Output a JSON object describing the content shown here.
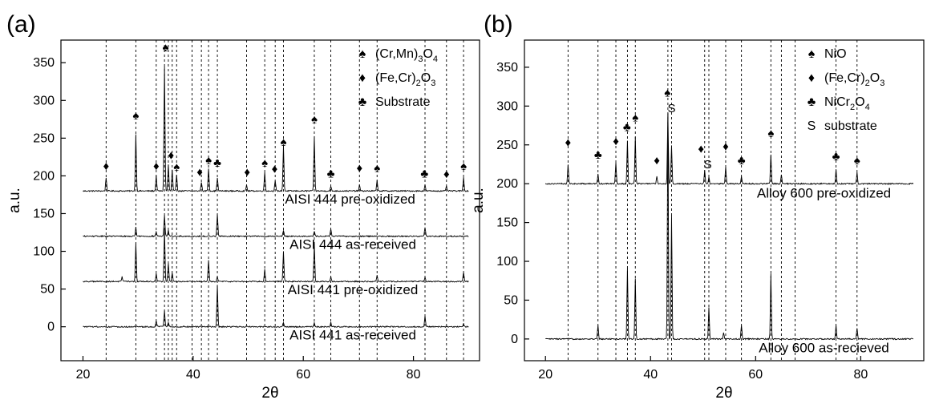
{
  "chart_data": [
    {
      "panel_label": "(a)",
      "type": "line",
      "xlabel": "2θ",
      "ylabel": "a.u.",
      "xlim": [
        16,
        92
      ],
      "ylim": [
        -45,
        380
      ],
      "xticks": [
        20,
        40,
        60,
        80
      ],
      "yticks": [
        0,
        50,
        100,
        150,
        200,
        250,
        300,
        350
      ],
      "reference_lines_x": [
        24.2,
        29.6,
        33.3,
        34.8,
        35.5,
        36.2,
        37.0,
        39.8,
        41.5,
        42.8,
        44.4,
        49.7,
        53.0,
        54.9,
        56.4,
        62.0,
        65.0,
        70.2,
        73.4,
        82.1,
        86.0,
        89.1
      ],
      "legend": [
        {
          "symbol": "♠",
          "label_main": "(Cr,Mn)",
          "sub": "3",
          "label_after": "O",
          "sub2": "4"
        },
        {
          "symbol": "♦",
          "label_main": "(Fe,Cr)",
          "sub": "2",
          "label_after": "O",
          "sub2": "3"
        },
        {
          "symbol": "♣",
          "label_main": "Substrate",
          "sub": "",
          "label_after": "",
          "sub2": ""
        }
      ],
      "series": [
        {
          "label": "AISI 444 pre-oxidized",
          "baseline": 180,
          "label_x": 68.5,
          "label_y": 163,
          "peaks": [
            [
              24.2,
              18
            ],
            [
              29.6,
              75
            ],
            [
              33.3,
              20
            ],
            [
              34.8,
              165
            ],
            [
              35.5,
              35
            ],
            [
              36.2,
              28
            ],
            [
              37.0,
              22
            ],
            [
              41.5,
              12
            ],
            [
              42.8,
              30
            ],
            [
              44.4,
              18
            ],
            [
              49.7,
              8
            ],
            [
              53.0,
              25
            ],
            [
              54.9,
              14
            ],
            [
              56.4,
              60
            ],
            [
              62.0,
              72
            ],
            [
              65.0,
              6
            ],
            [
              70.2,
              8
            ],
            [
              73.4,
              14
            ],
            [
              82.1,
              8
            ],
            [
              86.0,
              6
            ],
            [
              89.1,
              18
            ]
          ]
        },
        {
          "label": "AISI 444 as-received",
          "baseline": 120,
          "label_x": 69,
          "label_y": 103,
          "peaks": [
            [
              29.6,
              12
            ],
            [
              33.3,
              6
            ],
            [
              34.8,
              28
            ],
            [
              35.5,
              8
            ],
            [
              44.4,
              30
            ],
            [
              56.4,
              8
            ],
            [
              62.0,
              6
            ],
            [
              65.0,
              10
            ],
            [
              82.1,
              12
            ]
          ]
        },
        {
          "label": "AISI 441 pre-oxidized",
          "baseline": 60,
          "label_x": 69,
          "label_y": 43,
          "peaks": [
            [
              27.1,
              6
            ],
            [
              29.6,
              50
            ],
            [
              33.3,
              10
            ],
            [
              34.8,
              70
            ],
            [
              35.5,
              25
            ],
            [
              36.2,
              12
            ],
            [
              42.8,
              28
            ],
            [
              44.4,
              6
            ],
            [
              53.0,
              16
            ],
            [
              56.4,
              40
            ],
            [
              62.0,
              50
            ],
            [
              65.0,
              6
            ],
            [
              73.4,
              8
            ],
            [
              82.1,
              6
            ],
            [
              89.1,
              12
            ]
          ]
        },
        {
          "label": "AISI 441 as-received",
          "baseline": 0,
          "label_x": 69,
          "label_y": -17,
          "peaks": [
            [
              33.3,
              8
            ],
            [
              34.8,
              22
            ],
            [
              35.5,
              6
            ],
            [
              44.4,
              55
            ],
            [
              56.4,
              6
            ],
            [
              62.0,
              5
            ],
            [
              65.0,
              6
            ],
            [
              82.1,
              14
            ],
            [
              89.1,
              4
            ]
          ]
        }
      ],
      "annotations": [
        {
          "symbol": "♦",
          "x": 24.2,
          "y": 208
        },
        {
          "symbol": "♠",
          "x": 29.6,
          "y": 275
        },
        {
          "symbol": "♦",
          "x": 33.3,
          "y": 208
        },
        {
          "symbol": "♠",
          "x": 35.0,
          "y": 365
        },
        {
          "symbol": "♦",
          "x": 36.0,
          "y": 222
        },
        {
          "symbol": "♠",
          "x": 37.0,
          "y": 207
        },
        {
          "symbol": "♦",
          "x": 41.2,
          "y": 200
        },
        {
          "symbol": "♠",
          "x": 42.8,
          "y": 216
        },
        {
          "symbol": "♣",
          "x": 44.4,
          "y": 212
        },
        {
          "symbol": "♦",
          "x": 49.8,
          "y": 200
        },
        {
          "symbol": "♠",
          "x": 53.0,
          "y": 212
        },
        {
          "symbol": "♦",
          "x": 54.8,
          "y": 204
        },
        {
          "symbol": "♠",
          "x": 56.4,
          "y": 240
        },
        {
          "symbol": "♠",
          "x": 62.0,
          "y": 270
        },
        {
          "symbol": "♣",
          "x": 65.0,
          "y": 198
        },
        {
          "symbol": "♦",
          "x": 70.2,
          "y": 205
        },
        {
          "symbol": "♠",
          "x": 73.4,
          "y": 205
        },
        {
          "symbol": "♣",
          "x": 82.0,
          "y": 198
        },
        {
          "symbol": "♦",
          "x": 86.0,
          "y": 197
        },
        {
          "symbol": "♠",
          "x": 89.1,
          "y": 208
        }
      ]
    },
    {
      "panel_label": "(b)",
      "type": "line",
      "xlabel": "2θ",
      "ylabel": "a.u.",
      "xlim": [
        16,
        92
      ],
      "ylim": [
        -28,
        385
      ],
      "xticks": [
        20,
        40,
        60,
        80
      ],
      "yticks": [
        0,
        50,
        100,
        150,
        200,
        250,
        300,
        350
      ],
      "reference_lines_x": [
        24.3,
        30.0,
        33.4,
        35.6,
        37.1,
        43.3,
        44.0,
        50.3,
        51.1,
        54.3,
        57.3,
        62.9,
        64.9,
        67.5,
        75.3,
        79.3
      ],
      "legend": [
        {
          "symbol": "♠",
          "label_main": "NiO",
          "sub": "",
          "label_after": "",
          "sub2": ""
        },
        {
          "symbol": "♦",
          "label_main": "(Fe,Cr)",
          "sub": "2",
          "label_after": "O",
          "sub2": "3"
        },
        {
          "symbol": "♣",
          "label_main": "NiCr",
          "sub": "2",
          "label_after": "O",
          "sub2": "4"
        },
        {
          "symbol": "S",
          "label_main": "substrate",
          "sub": "",
          "label_after": "",
          "sub2": ""
        }
      ],
      "series": [
        {
          "label": "Alloy 600 pre-oxidized",
          "baseline": 200,
          "label_x": 73,
          "label_y": 182,
          "peaks": [
            [
              24.3,
              25
            ],
            [
              30.0,
              12
            ],
            [
              33.4,
              28
            ],
            [
              35.6,
              55
            ],
            [
              37.1,
              60
            ],
            [
              41.2,
              10
            ],
            [
              43.3,
              90
            ],
            [
              44.0,
              50
            ],
            [
              50.3,
              18
            ],
            [
              51.1,
              8
            ],
            [
              54.3,
              22
            ],
            [
              57.3,
              10
            ],
            [
              62.9,
              38
            ],
            [
              64.9,
              12
            ],
            [
              75.3,
              18
            ],
            [
              79.3,
              15
            ]
          ]
        },
        {
          "label": "Alloy 600 as-recieved",
          "baseline": 0,
          "label_x": 73,
          "label_y": -17,
          "peaks": [
            [
              30.0,
              18
            ],
            [
              35.6,
              92
            ],
            [
              37.1,
              78
            ],
            [
              43.3,
              290
            ],
            [
              44.0,
              160
            ],
            [
              51.1,
              40
            ],
            [
              53.9,
              8
            ],
            [
              57.3,
              18
            ],
            [
              62.9,
              85
            ],
            [
              75.3,
              18
            ],
            [
              79.3,
              14
            ]
          ]
        }
      ],
      "annotations": [
        {
          "symbol": "♦",
          "x": 24.3,
          "y": 248
        },
        {
          "symbol": "♣",
          "x": 30.0,
          "y": 232
        },
        {
          "symbol": "♦",
          "x": 33.4,
          "y": 250
        },
        {
          "symbol": "♣",
          "x": 35.5,
          "y": 268
        },
        {
          "symbol": "♠",
          "x": 37.1,
          "y": 280
        },
        {
          "symbol": "♦",
          "x": 41.2,
          "y": 225
        },
        {
          "symbol": "♠",
          "x": 43.2,
          "y": 312
        },
        {
          "symbol": "S",
          "x": 44.0,
          "y": 292
        },
        {
          "symbol": "♦",
          "x": 49.6,
          "y": 240
        },
        {
          "symbol": "S",
          "x": 50.9,
          "y": 220
        },
        {
          "symbol": "♦",
          "x": 54.3,
          "y": 243
        },
        {
          "symbol": "♣",
          "x": 57.3,
          "y": 225
        },
        {
          "symbol": "♠",
          "x": 62.9,
          "y": 260
        },
        {
          "symbol": "♣",
          "x": 75.3,
          "y": 230
        },
        {
          "symbol": "♠",
          "x": 79.3,
          "y": 225
        }
      ]
    }
  ]
}
